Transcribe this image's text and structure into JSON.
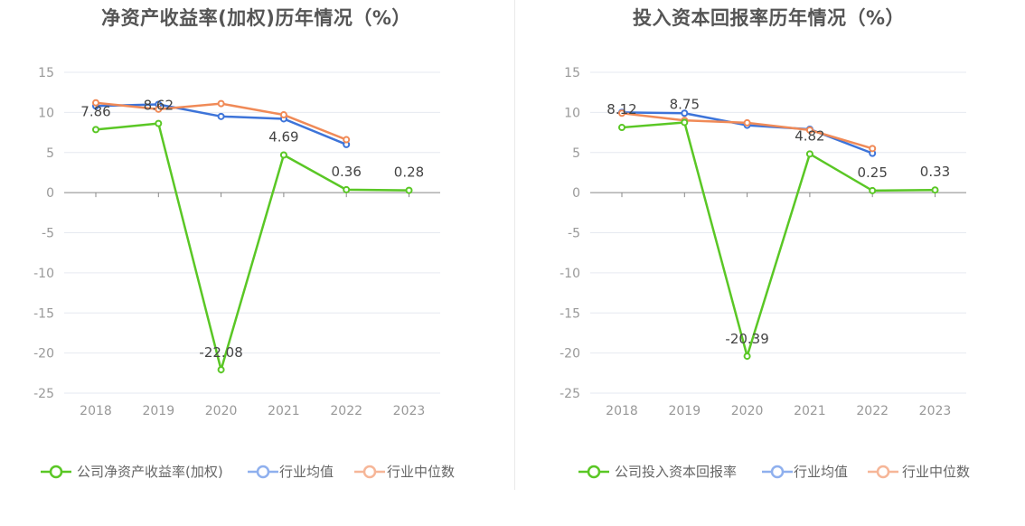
{
  "charts": [
    {
      "title": "净资产收益率(加权)历年情况（%）",
      "chart_data": {
        "type": "line",
        "categories": [
          "2018",
          "2019",
          "2020",
          "2021",
          "2022",
          "2023"
        ],
        "ylim": [
          -25,
          15
        ],
        "yticks": [
          15,
          10,
          5,
          0,
          -5,
          -10,
          -15,
          -20,
          -25
        ],
        "grid": true,
        "legend_position": "bottom",
        "series": [
          {
            "name": "公司净资产收益率(加权)",
            "color": "#5ac725",
            "values": [
              7.86,
              8.62,
              -22.08,
              4.69,
              0.36,
              0.28
            ],
            "labels": [
              "7.86",
              "8.62",
              "-22.08",
              "4.69",
              "0.36",
              "0.28"
            ]
          },
          {
            "name": "行业均值",
            "color": "#3d74d9",
            "values": [
              10.8,
              11.0,
              9.5,
              9.2,
              6.0,
              null
            ]
          },
          {
            "name": "行业中位数",
            "color": "#f08a57",
            "values": [
              11.2,
              10.4,
              11.1,
              9.7,
              6.6,
              null
            ]
          }
        ]
      }
    },
    {
      "title": "投入资本回报率历年情况（%）",
      "chart_data": {
        "type": "line",
        "categories": [
          "2018",
          "2019",
          "2020",
          "2021",
          "2022",
          "2023"
        ],
        "ylim": [
          -25,
          15
        ],
        "yticks": [
          15,
          10,
          5,
          0,
          -5,
          -10,
          -15,
          -20,
          -25
        ],
        "grid": true,
        "legend_position": "bottom",
        "series": [
          {
            "name": "公司投入资本回报率",
            "color": "#5ac725",
            "values": [
              8.12,
              8.75,
              -20.39,
              4.82,
              0.25,
              0.33
            ],
            "labels": [
              "8.12",
              "8.75",
              "-20.39",
              "4.82",
              "0.25",
              "0.33"
            ]
          },
          {
            "name": "行业均值",
            "color": "#3d74d9",
            "values": [
              10.0,
              9.9,
              8.4,
              7.9,
              4.9,
              null
            ]
          },
          {
            "name": "行业中位数",
            "color": "#f08a57",
            "values": [
              9.9,
              9.0,
              8.7,
              7.8,
              5.5,
              null
            ]
          }
        ]
      }
    }
  ]
}
